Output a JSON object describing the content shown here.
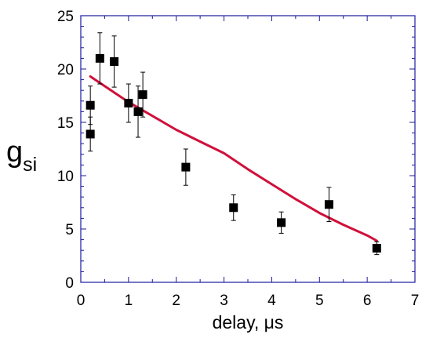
{
  "chart_data": {
    "type": "scatter",
    "xlabel": "delay, μs",
    "ylabel": "g",
    "ylabel_subscript": "si",
    "xlim": [
      0,
      7
    ],
    "ylim": [
      0,
      25
    ],
    "x_ticks": [
      "0",
      "1",
      "2",
      "3",
      "4",
      "5",
      "6",
      "7"
    ],
    "y_ticks": [
      "0",
      "5",
      "10",
      "15",
      "20",
      "25"
    ],
    "grid": false,
    "frame_color": "#1a1aa0",
    "series": [
      {
        "kind": "points",
        "marker": "square",
        "color": "#000000",
        "points": [
          {
            "x": 0.2,
            "y": 16.6,
            "err": 1.8
          },
          {
            "x": 0.2,
            "y": 13.9,
            "err": 1.6
          },
          {
            "x": 0.4,
            "y": 21.0,
            "err": 2.4
          },
          {
            "x": 0.7,
            "y": 20.7,
            "err": 2.4
          },
          {
            "x": 1.0,
            "y": 16.8,
            "err": 1.8
          },
          {
            "x": 1.2,
            "y": 16.0,
            "err": 2.4
          },
          {
            "x": 1.3,
            "y": 17.6,
            "err": 2.1
          },
          {
            "x": 2.2,
            "y": 10.8,
            "err": 1.7
          },
          {
            "x": 3.2,
            "y": 7.0,
            "err": 1.2
          },
          {
            "x": 4.2,
            "y": 5.6,
            "err": 1.0
          },
          {
            "x": 5.2,
            "y": 7.3,
            "err": 1.6
          },
          {
            "x": 6.2,
            "y": 3.2,
            "err": 0.6
          }
        ]
      },
      {
        "kind": "fit_curve",
        "color": "#d0103a",
        "x": [
          0.2,
          0.5,
          1.0,
          1.5,
          2.0,
          2.5,
          3.0,
          3.5,
          4.0,
          4.5,
          5.0,
          5.5,
          6.0,
          6.2
        ],
        "y": [
          19.3,
          18.4,
          16.9,
          15.6,
          14.3,
          13.2,
          12.1,
          10.6,
          9.2,
          7.8,
          6.5,
          5.4,
          4.4,
          3.9
        ]
      }
    ]
  }
}
